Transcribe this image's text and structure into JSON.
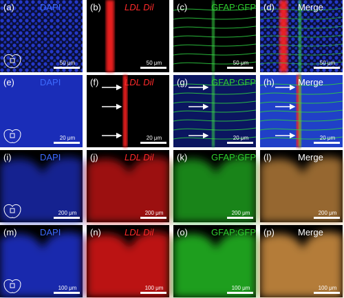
{
  "panels": [
    {
      "label": "(a)",
      "channel": "DAPI",
      "scale": "50 μm"
    },
    {
      "label": "(b)",
      "channel": "LDL Dil",
      "scale": "50 μm"
    },
    {
      "label": "(c)",
      "channel": "GFAP:GFP",
      "scale": "50 μm"
    },
    {
      "label": "(d)",
      "channel": "Merge",
      "scale": "50 μm"
    },
    {
      "label": "(e)",
      "channel": "DAPI",
      "scale": "20 μm"
    },
    {
      "label": "(f)",
      "channel": "LDL Dil",
      "scale": "20 μm"
    },
    {
      "label": "(g)",
      "channel": "GFAP:GFP",
      "scale": "20 μm"
    },
    {
      "label": "(h)",
      "channel": "Merge",
      "scale": "20 μm"
    },
    {
      "label": "(i)",
      "channel": "DAPI",
      "scale": "200 μm"
    },
    {
      "label": "(j)",
      "channel": "LDL Dil",
      "scale": "200 μm"
    },
    {
      "label": "(k)",
      "channel": "GFAP:GFP",
      "scale": "200 μm"
    },
    {
      "label": "(l)",
      "channel": "Merge",
      "scale": "200 μm"
    },
    {
      "label": "(m)",
      "channel": "DAPI",
      "scale": "100 μm"
    },
    {
      "label": "(n)",
      "channel": "LDL Dil",
      "scale": "100 μm"
    },
    {
      "label": "(o)",
      "channel": "GFAP:GFP",
      "scale": "100 μm"
    },
    {
      "label": "(p)",
      "channel": "Merge",
      "scale": "100 μm"
    }
  ]
}
